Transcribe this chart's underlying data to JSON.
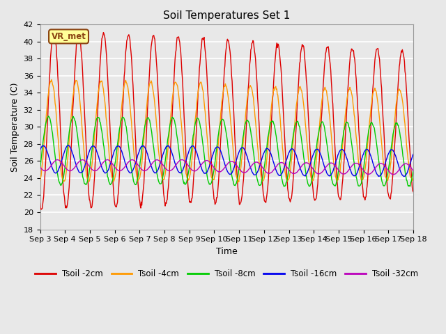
{
  "title": "Soil Temperatures Set 1",
  "xlabel": "Time",
  "ylabel": "Soil Temperature (C)",
  "ylim": [
    18,
    42
  ],
  "yticks": [
    18,
    20,
    22,
    24,
    26,
    28,
    30,
    32,
    34,
    36,
    38,
    40,
    42
  ],
  "num_days": 15,
  "points_per_day": 48,
  "x_tick_labels": [
    "Sep 3",
    "Sep 4",
    "Sep 5",
    "Sep 6",
    "Sep 7",
    "Sep 8",
    "Sep 9",
    "Sep 10",
    "Sep 11",
    "Sep 12",
    "Sep 13",
    "Sep 14",
    "Sep 15",
    "Sep 16",
    "Sep 17",
    "Sep 18"
  ],
  "series": [
    {
      "name": "Tsoil -2cm",
      "color": "#dd0000",
      "amp": 10.5,
      "mean": 30.8,
      "phase": 0.0,
      "amp_decay": 0.012
    },
    {
      "name": "Tsoil -4cm",
      "color": "#ff9900",
      "amp": 6.0,
      "mean": 29.5,
      "phase": 0.1,
      "amp_decay": 0.008
    },
    {
      "name": "Tsoil -8cm",
      "color": "#00cc00",
      "amp": 4.0,
      "mean": 27.2,
      "phase": 0.22,
      "amp_decay": 0.005
    },
    {
      "name": "Tsoil -16cm",
      "color": "#0000ee",
      "amp": 1.6,
      "mean": 26.2,
      "phase": 0.42,
      "amp_decay": 0.002
    },
    {
      "name": "Tsoil -32cm",
      "color": "#bb00bb",
      "amp": 0.65,
      "mean": 25.5,
      "phase": 0.85,
      "amp_decay": 0.001
    }
  ],
  "annotation_text": "VR_met",
  "bg_color": "#e8e8e8",
  "grid_color": "#ffffff",
  "title_fontsize": 11,
  "axis_fontsize": 9,
  "tick_fontsize": 8,
  "legend_fontsize": 8.5
}
